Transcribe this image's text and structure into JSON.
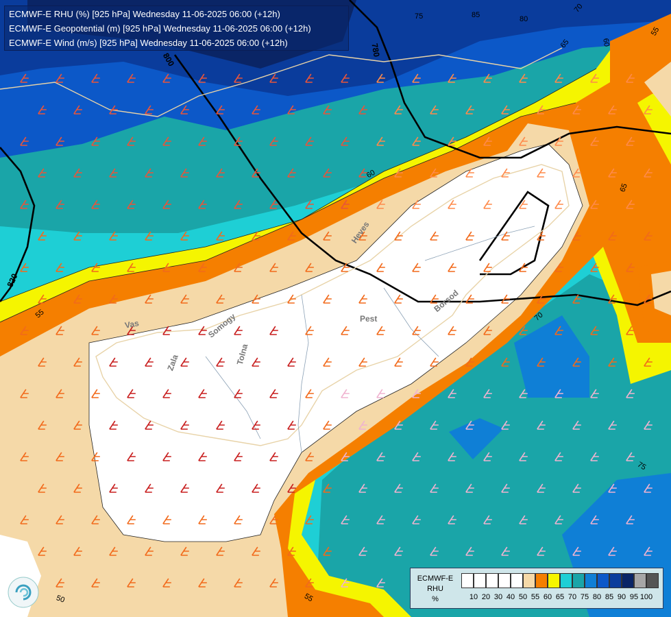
{
  "titles": [
    "ECMWF-E RHU (%) [925 hPa] Wednesday 11-06-2025 06:00 (+12h)",
    "ECMWF-E Geopotential (m) [925 hPa] Wednesday 11-06-2025 06:00 (+12h)",
    "ECMWF-E Wind (m/s) [925 hPa] Wednesday 11-06-2025 06:00 (+12h)"
  ],
  "legend": {
    "title_lines": [
      "ECMWF-E",
      "RHU",
      "%"
    ],
    "colors": [
      "#ffffff",
      "#ffffff",
      "#ffffff",
      "#ffffff",
      "#ffffff",
      "#f5d9a8",
      "#f57f00",
      "#f5f500",
      "#1ecfd5",
      "#1aa5a8",
      "#0f7fd6",
      "#0c58c8",
      "#0a3c9c",
      "#0a2566",
      "#a6a6a6",
      "#555555"
    ],
    "ticks": [
      "10",
      "20",
      "30",
      "40",
      "50",
      "55",
      "60",
      "65",
      "70",
      "75",
      "80",
      "85",
      "90",
      "95",
      "100"
    ]
  },
  "contour_labels": {
    "rhu": [
      "55",
      "60",
      "65",
      "70",
      "75",
      "80",
      "85",
      "50",
      "55",
      "55",
      "60",
      "65",
      "70",
      "75",
      "75",
      "80",
      "65"
    ],
    "geopotential": [
      "780",
      "820",
      "800"
    ]
  },
  "region_labels": [
    "Vas",
    "Zala",
    "Somogy",
    "Tolna",
    "Pest",
    "Heves",
    "Borsod"
  ]
}
